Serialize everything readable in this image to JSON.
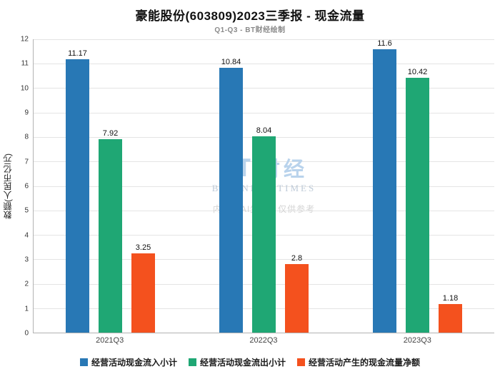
{
  "watermark": {
    "logo_mark": "BT",
    "logo_cn": "财经",
    "logo_sub": "BUSINESS TIMES",
    "disclaimer": "内容由AI生成，仅供参考"
  },
  "chart_data": {
    "type": "bar",
    "title": "豪能股份(603809)2023三季报 - 现金流量",
    "subtitle": "Q1-Q3 - BT财经绘制",
    "categories": [
      "2021Q3",
      "2022Q3",
      "2023Q3"
    ],
    "series": [
      {
        "name": "经营活动现金流入小计",
        "color": "#2878B5",
        "values": [
          11.17,
          10.84,
          11.6
        ]
      },
      {
        "name": "经营活动现金流出小计",
        "color": "#1FA774",
        "values": [
          7.92,
          8.04,
          10.42
        ]
      },
      {
        "name": "经营活动产生的现金流量净额",
        "color": "#F4511E",
        "values": [
          3.25,
          2.8,
          1.18
        ]
      }
    ],
    "xlabel": "",
    "ylabel": "数额(人民币亿元)",
    "ylim": [
      0,
      12
    ],
    "ytick_step": 1,
    "grid": true,
    "legend_position": "bottom"
  }
}
